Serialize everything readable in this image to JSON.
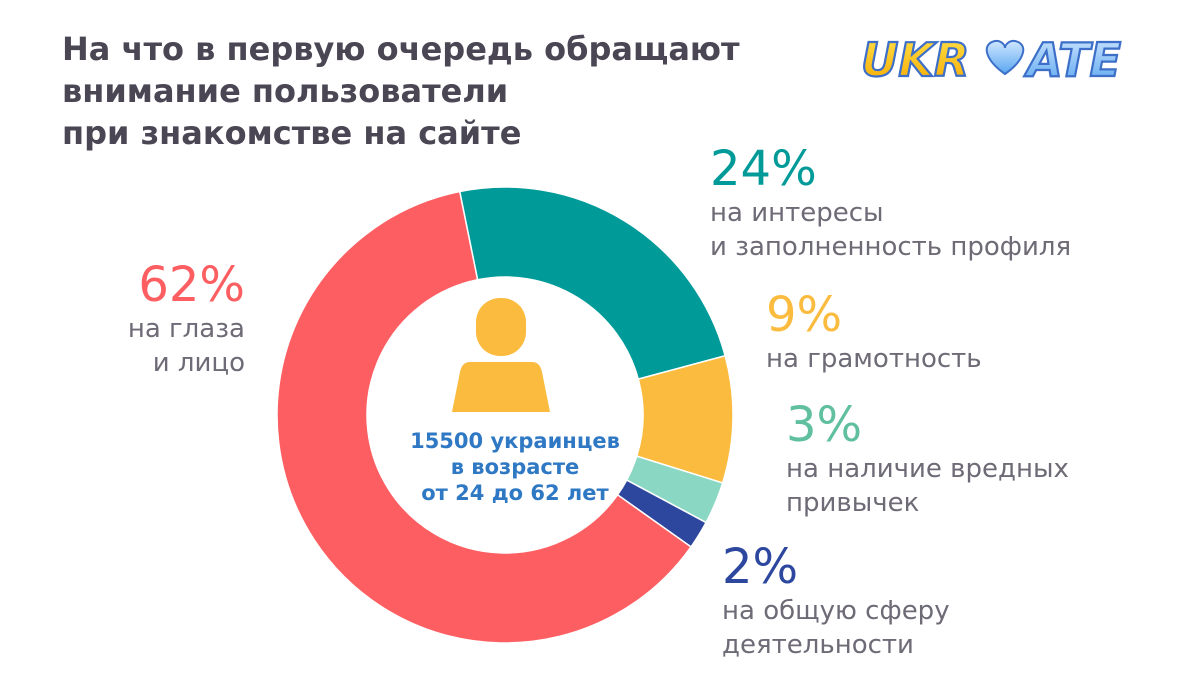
{
  "title": {
    "line1": "На что в первую очередь обращают",
    "line2": "внимание пользователи",
    "line3": "при знакомстве на сайте"
  },
  "logo": {
    "left": "UKR",
    "right": "ATE"
  },
  "center": {
    "line1": "15500 украинцев",
    "line2": "в возрасте",
    "line3": "от 24 до 62 лет",
    "icon": "person-icon",
    "color": "#2f78c4"
  },
  "chart_data": {
    "type": "pie",
    "donut": true,
    "slices": [
      {
        "label": "на глаза и лицо",
        "value": 62,
        "display": "62%",
        "color": "#fd5e62",
        "desc_lines": [
          "на глаза",
          "и лицо"
        ]
      },
      {
        "label": "на интересы и заполненность профиля",
        "value": 24,
        "display": "24%",
        "color": "#009a98",
        "desc_lines": [
          "на интересы",
          "и заполненность профиля"
        ]
      },
      {
        "label": "на грамотность",
        "value": 9,
        "display": "9%",
        "color": "#fbbb3f",
        "desc_lines": [
          "на грамотность"
        ]
      },
      {
        "label": "на наличие вредных привычек",
        "value": 3,
        "display": "3%",
        "color": "#8ad8c3",
        "desc_lines": [
          "на наличие вредных",
          "привычек"
        ]
      },
      {
        "label": "на общую сферу деятельности",
        "value": 2,
        "display": "2%",
        "color": "#2d479f",
        "desc_lines": [
          "на общую сферу",
          "деятельности"
        ]
      }
    ]
  }
}
